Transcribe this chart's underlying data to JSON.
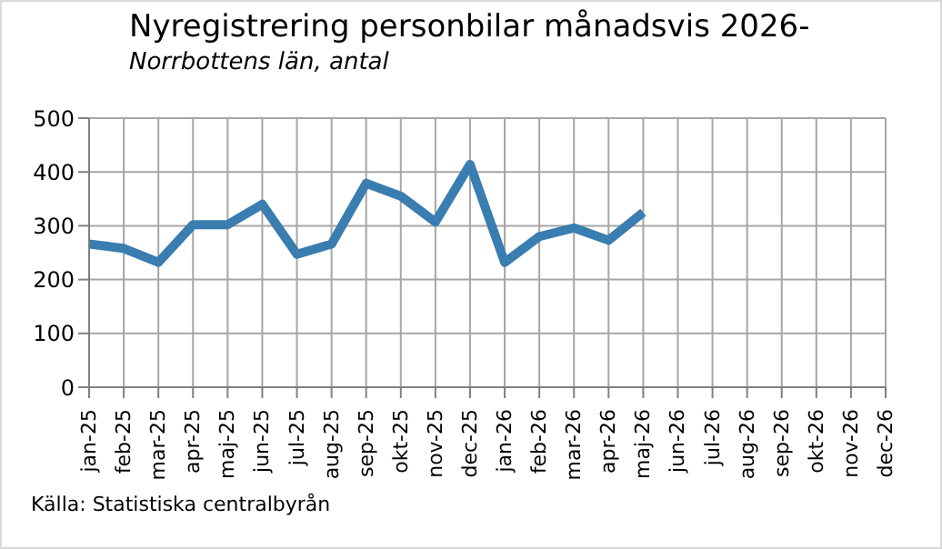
{
  "chart_data": {
    "type": "line",
    "title": "Nyregistrering personbilar månadsvis 2026-",
    "subtitle": "Norrbottens län, antal",
    "categories": [
      "jan-25",
      "feb-25",
      "mar-25",
      "apr-25",
      "maj-25",
      "jun-25",
      "jul-25",
      "aug-25",
      "sep-25",
      "okt-25",
      "nov-25",
      "dec-25",
      "jan-26",
      "feb-26",
      "mar-26",
      "apr-26",
      "maj-26",
      "jun-26",
      "jul-26",
      "aug-26",
      "sep-26",
      "okt-26",
      "nov-26",
      "dec-26"
    ],
    "series": [
      {
        "color": "#3a7db0",
        "values": [
          266,
          258,
          232,
          302,
          302,
          340,
          247,
          266,
          379,
          355,
          307,
          414,
          232,
          280,
          296,
          273,
          325,
          null,
          null,
          null,
          null,
          null,
          null,
          null
        ]
      }
    ],
    "ylim": [
      0,
      500
    ],
    "yticks": [
      0,
      100,
      200,
      300,
      400,
      500
    ],
    "grid": true,
    "marker": "none",
    "line_style": "solid",
    "annotations": [
      "Källa: Statistiska centralbyrån"
    ]
  }
}
